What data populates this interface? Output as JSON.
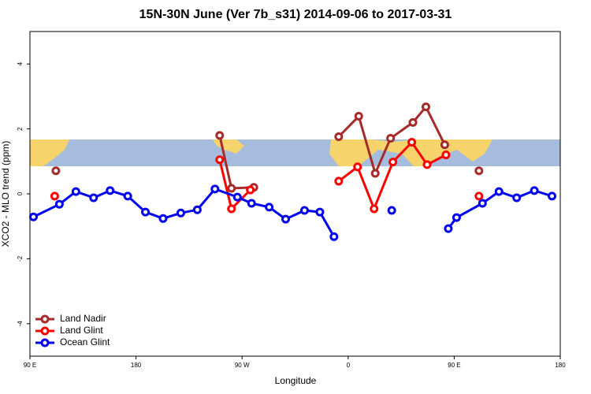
{
  "chart_data": {
    "type": "line",
    "title": "15N-30N June (Ver 7b_s31)   2014-09-06 to 2017-03-31",
    "x_label": "Longitude",
    "y_label": "XCO2 - MLO trend (ppm)",
    "xlim": [
      90,
      540
    ],
    "ylim": [
      -5,
      5
    ],
    "xticks": [
      {
        "value": 90,
        "label": "90 E"
      },
      {
        "value": 180,
        "label": "180"
      },
      {
        "value": 270,
        "label": "90 W"
      },
      {
        "value": 360,
        "label": "0"
      },
      {
        "value": 450,
        "label": "90 E"
      },
      {
        "value": 540,
        "label": "180"
      }
    ],
    "yticks": [
      -4,
      -2,
      0,
      2,
      4
    ],
    "legend": "bottom-left",
    "series": [
      {
        "name": "Land Nadir",
        "color": "#a52a2a",
        "x": [
          112,
          180,
          251,
          261,
          280,
          316,
          352,
          369,
          383,
          396,
          415,
          426,
          442,
          456,
          471
        ],
        "values": [
          0.71,
          null,
          1.8,
          0.17,
          0.2,
          null,
          1.76,
          2.39,
          0.63,
          1.71,
          2.2,
          2.68,
          1.51,
          null,
          0.71
        ]
      },
      {
        "name": "Land Glint",
        "color": "#ff0000",
        "x": [
          111,
          180,
          251,
          261,
          277,
          314,
          352,
          368,
          382,
          398,
          414,
          427,
          443,
          456,
          471
        ],
        "values": [
          -0.07,
          null,
          1.05,
          -0.46,
          0.12,
          null,
          0.39,
          0.83,
          -0.46,
          0.98,
          1.59,
          0.9,
          1.2,
          null,
          -0.07
        ]
      },
      {
        "name": "Ocean Glint",
        "color": "#0000ee",
        "x": [
          93,
          115,
          129,
          144,
          158,
          173,
          188,
          203,
          218,
          232,
          247,
          266,
          278,
          293,
          307,
          323,
          336,
          348,
          372,
          397,
          420,
          445,
          452,
          474,
          488,
          503,
          518,
          533
        ],
        "values": [
          -0.71,
          -0.32,
          0.07,
          -0.12,
          0.1,
          -0.07,
          -0.56,
          -0.76,
          -0.59,
          -0.49,
          0.15,
          -0.1,
          -0.29,
          -0.41,
          -0.78,
          -0.51,
          -0.56,
          -1.32,
          null,
          -0.51,
          null,
          -1.07,
          -0.73,
          -0.29,
          0.07,
          -0.12,
          0.1,
          -0.07
        ]
      }
    ]
  }
}
